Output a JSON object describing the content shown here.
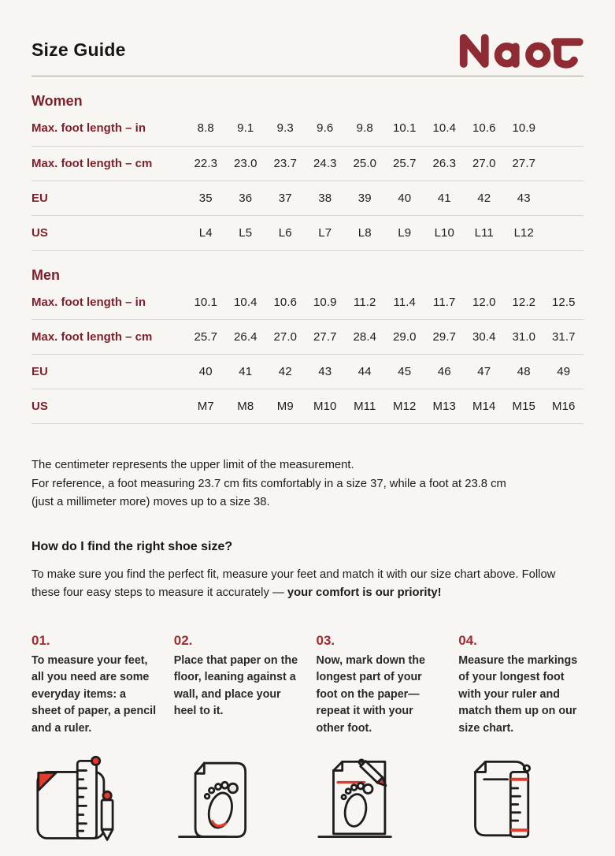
{
  "page": {
    "title": "Size Guide",
    "brand": "Naot"
  },
  "colors": {
    "background": "#f8f6f3",
    "brand_red": "#8e2b33",
    "heading_red": "#7f1f2a",
    "step_number_red": "#a02b30",
    "icon_accent_red": "#df3c2e",
    "text": "#1d1d1d",
    "row_line": "#d9d6d0",
    "header_line": "#a19d96"
  },
  "women": {
    "heading": "Women",
    "rows": [
      {
        "label": "Max. foot length – in",
        "values": [
          "8.8",
          "9.1",
          "9.3",
          "9.6",
          "9.8",
          "10.1",
          "10.4",
          "10.6",
          "10.9"
        ]
      },
      {
        "label": "Max. foot length – cm",
        "values": [
          "22.3",
          "23.0",
          "23.7",
          "24.3",
          "25.0",
          "25.7",
          "26.3",
          "27.0",
          "27.7"
        ]
      },
      {
        "label": "EU",
        "values": [
          "35",
          "36",
          "37",
          "38",
          "39",
          "40",
          "41",
          "42",
          "43"
        ]
      },
      {
        "label": "US",
        "values": [
          "L4",
          "L5",
          "L6",
          "L7",
          "L8",
          "L9",
          "L10",
          "L11",
          "L12"
        ]
      }
    ]
  },
  "men": {
    "heading": "Men",
    "rows": [
      {
        "label": "Max. foot length – in",
        "values": [
          "10.1",
          "10.4",
          "10.6",
          "10.9",
          "11.2",
          "11.4",
          "11.7",
          "12.0",
          "12.2",
          "12.5"
        ]
      },
      {
        "label": "Max. foot length – cm",
        "values": [
          "25.7",
          "26.4",
          "27.0",
          "27.7",
          "28.4",
          "29.0",
          "29.7",
          "30.4",
          "31.0",
          "31.7"
        ]
      },
      {
        "label": "EU",
        "values": [
          "40",
          "41",
          "42",
          "43",
          "44",
          "45",
          "46",
          "47",
          "48",
          "49"
        ]
      },
      {
        "label": "US",
        "values": [
          "M7",
          "M8",
          "M9",
          "M10",
          "M11",
          "M12",
          "M13",
          "M14",
          "M15",
          "M16"
        ]
      }
    ]
  },
  "notes": {
    "line1": "The centimeter represents the upper limit of the measurement.",
    "line2": "For reference, a foot measuring 23.7 cm fits comfortably in a size 37, while a foot at 23.8 cm",
    "line3": "(just a millimeter more) moves up to a size 38."
  },
  "how_to": {
    "heading": "How do I find the right shoe size?",
    "intro_regular": "To make sure you find the perfect fit, measure your feet and match it with our size chart above. Follow these four easy steps to measure it accurately — ",
    "intro_bold": "your comfort is our priority!"
  },
  "steps": [
    {
      "number": "01.",
      "text": "To measure your feet, all you need are some everyday items: a sheet of paper, a pencil and a ruler.",
      "icon": "paper-ruler-pencil-icon"
    },
    {
      "number": "02.",
      "text": "Place that paper on the floor, leaning against a wall, and place your heel to it.",
      "icon": "paper-footprint-icon"
    },
    {
      "number": "03.",
      "text": "Now, mark down the longest part of your foot on the paper—repeat it with your other foot.",
      "icon": "paper-footprint-pencil-icon"
    },
    {
      "number": "04.",
      "text": "Measure the markings of your longest foot with your ruler and match them up on our size chart.",
      "icon": "paper-ruler-marks-icon"
    }
  ]
}
